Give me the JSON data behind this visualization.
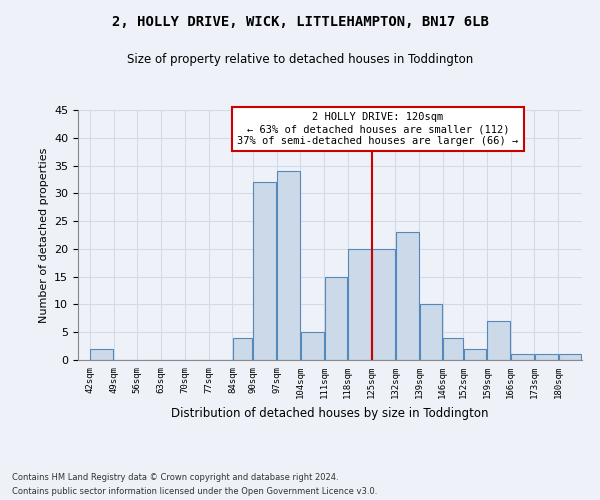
{
  "title": "2, HOLLY DRIVE, WICK, LITTLEHAMPTON, BN17 6LB",
  "subtitle": "Size of property relative to detached houses in Toddington",
  "xlabel_bottom": "Distribution of detached houses by size in Toddington",
  "ylabel": "Number of detached properties",
  "footer_line1": "Contains HM Land Registry data © Crown copyright and database right 2024.",
  "footer_line2": "Contains public sector information licensed under the Open Government Licence v3.0.",
  "bins": [
    42,
    49,
    56,
    63,
    70,
    77,
    84,
    90,
    97,
    104,
    111,
    118,
    125,
    132,
    139,
    146,
    152,
    159,
    166,
    173,
    180
  ],
  "bin_labels": [
    "42sqm",
    "49sqm",
    "56sqm",
    "63sqm",
    "70sqm",
    "77sqm",
    "84sqm",
    "90sqm",
    "97sqm",
    "104sqm",
    "111sqm",
    "118sqm",
    "125sqm",
    "132sqm",
    "139sqm",
    "146sqm",
    "152sqm",
    "159sqm",
    "166sqm",
    "173sqm",
    "180sqm"
  ],
  "values": [
    2,
    0,
    0,
    0,
    0,
    0,
    4,
    32,
    34,
    5,
    15,
    20,
    20,
    23,
    10,
    4,
    2,
    7,
    1,
    1,
    1
  ],
  "bar_color": "#ccd9e8",
  "bar_edge_color": "#5588bb",
  "marker_value": 118,
  "annotation_line1": "2 HOLLY DRIVE: 120sqm",
  "annotation_line2": "← 63% of detached houses are smaller (112)",
  "annotation_line3": "37% of semi-detached houses are larger (66) →",
  "annotation_box_color": "#cc0000",
  "vline_color": "#cc0000",
  "grid_color": "#d0dae8",
  "background_color": "#eef2f8",
  "ylim": [
    0,
    45
  ],
  "yticks": [
    0,
    5,
    10,
    15,
    20,
    25,
    30,
    35,
    40,
    45
  ]
}
